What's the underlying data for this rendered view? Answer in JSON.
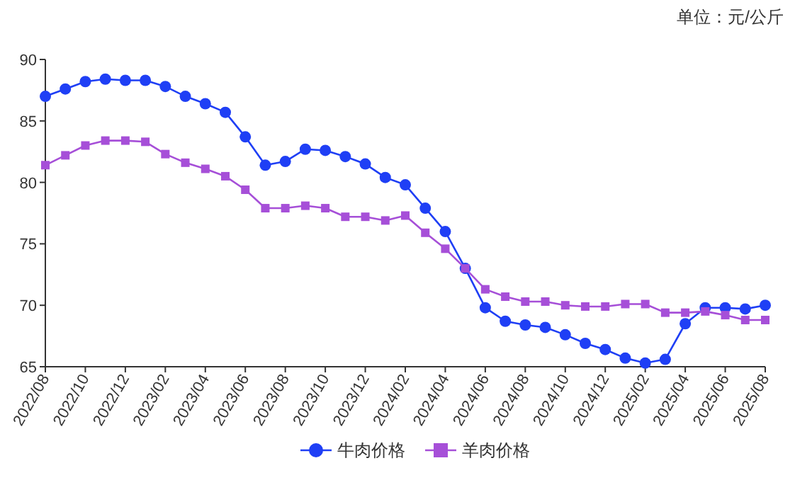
{
  "chart_data": {
    "type": "line",
    "annotations": [
      "单位：元/公斤"
    ],
    "x": [
      "2022-08",
      "2022-09",
      "2022-10",
      "2022-11",
      "2022-12",
      "2023-01",
      "2023-02",
      "2023-03",
      "2023-04",
      "2023-05",
      "2023-06",
      "2023-07",
      "2023-08",
      "2023-09",
      "2023-10",
      "2023-11",
      "2023-12",
      "2024-01",
      "2024-02",
      "2024-03",
      "2024-04",
      "2024-05",
      "2024-06",
      "2024-07",
      "2024-08",
      "2024-09",
      "2024-10",
      "2024-11",
      "2024-12",
      "2025-01",
      "2025-02",
      "2025-03",
      "2025-04",
      "2025-05",
      "2025-06",
      "2025-07",
      "2025-08"
    ],
    "series": [
      {
        "name": "牛肉价格",
        "color": "#1f3ff5",
        "marker": "circle",
        "values": [
          87.0,
          87.6,
          88.2,
          88.4,
          88.3,
          88.3,
          87.8,
          87.0,
          86.4,
          85.7,
          83.7,
          81.4,
          81.7,
          82.7,
          82.6,
          82.1,
          81.5,
          80.4,
          79.8,
          77.9,
          76.0,
          73.0,
          69.8,
          68.7,
          68.4,
          68.2,
          67.6,
          66.9,
          66.4,
          65.7,
          65.3,
          65.6,
          68.5,
          69.8,
          69.8,
          69.7,
          70.0
        ]
      },
      {
        "name": "羊肉价格",
        "color": "#a64fd8",
        "marker": "square",
        "values": [
          81.4,
          82.2,
          83.0,
          83.4,
          83.4,
          83.3,
          82.3,
          81.6,
          81.1,
          80.5,
          79.4,
          77.9,
          77.9,
          78.1,
          77.9,
          77.2,
          77.2,
          76.9,
          77.3,
          75.9,
          74.6,
          73.0,
          71.3,
          70.7,
          70.3,
          70.3,
          70.0,
          69.9,
          69.9,
          70.1,
          70.1,
          69.4,
          69.4,
          69.5,
          69.2,
          68.8,
          68.8
        ]
      }
    ],
    "xlim": [
      "2022-08",
      "2025-08"
    ],
    "xticks": [
      {
        "value": "2022-08",
        "label": "2022/08"
      },
      {
        "value": "2022-10",
        "label": "2022/10"
      },
      {
        "value": "2022-12",
        "label": "2022/12"
      },
      {
        "value": "2023-02",
        "label": "2023/02"
      },
      {
        "value": "2023-04",
        "label": "2023/04"
      },
      {
        "value": "2023-06",
        "label": "2023/06"
      },
      {
        "value": "2023-08",
        "label": "2023/08"
      },
      {
        "value": "2023-10",
        "label": "2023/10"
      },
      {
        "value": "2023-12",
        "label": "2023/12"
      },
      {
        "value": "2024-02",
        "label": "2024/02"
      },
      {
        "value": "2024-04",
        "label": "2024/04"
      },
      {
        "value": "2024-06",
        "label": "2024/06"
      },
      {
        "value": "2024-08",
        "label": "2024/08"
      },
      {
        "value": "2024-10",
        "label": "2024/10"
      },
      {
        "value": "2024-12",
        "label": "2024/12"
      },
      {
        "value": "2025-02",
        "label": "2025/02"
      },
      {
        "value": "2025-04",
        "label": "2025/04"
      },
      {
        "value": "2025-06",
        "label": "2025/06"
      },
      {
        "value": "2025-08",
        "label": "2025/08"
      }
    ],
    "ylim": [
      65,
      90
    ],
    "yticks": [
      65,
      70,
      75,
      80,
      85,
      90
    ],
    "grid": false,
    "legend": "bottom",
    "line_style": "solid"
  }
}
